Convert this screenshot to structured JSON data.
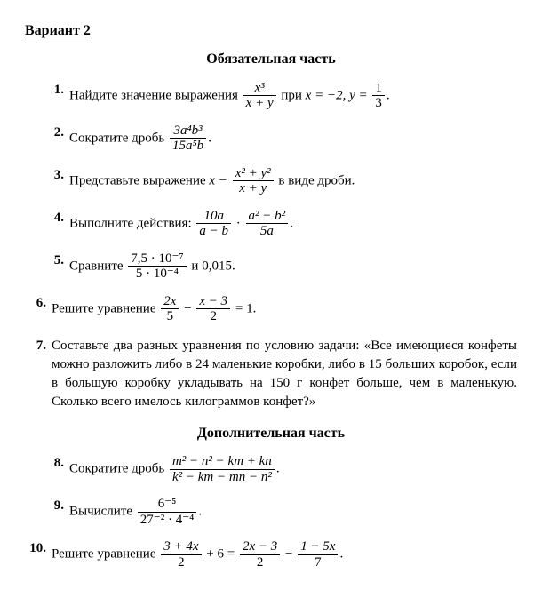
{
  "variant_label": "Вариант 2",
  "section1_title": "Обязательная часть",
  "section2_title": "Дополнительная часть",
  "tasks": {
    "t1": {
      "num": "1.",
      "pre": "Найдите значение выражения",
      "frac_top": "x³",
      "frac_bot": "x + y",
      "mid": "при",
      "x_eq": "x = −2,",
      "y_eq": "y =",
      "y_top": "1",
      "y_bot": "3",
      "end": "."
    },
    "t2": {
      "num": "2.",
      "pre": "Сократите дробь",
      "frac_top": "3a⁴b³",
      "frac_bot": "15a⁵b",
      "end": "."
    },
    "t3": {
      "num": "3.",
      "pre": "Представьте выражение",
      "lhs": "x −",
      "frac_top": "x² + y²",
      "frac_bot": "x + y",
      "post": "в виде дроби."
    },
    "t4": {
      "num": "4.",
      "pre": "Выполните действия:",
      "f1_top": "10a",
      "f1_bot": "a − b",
      "dot": " · ",
      "f2_top": "a² − b²",
      "f2_bot": "5a",
      "end": "."
    },
    "t5": {
      "num": "5.",
      "pre": "Сравните",
      "frac_top": "7,5 · 10⁻⁷",
      "frac_bot": "5 · 10⁻⁴",
      "post": "и 0,015."
    },
    "t6": {
      "num": "6.",
      "pre": "Решите уравнение",
      "f1_top": "2x",
      "f1_bot": "5",
      "minus": " − ",
      "f2_top": "x − 3",
      "f2_bot": "2",
      "eq": " = 1."
    },
    "t7": {
      "num": "7.",
      "text": "Составьте два разных уравнения по условию задачи: «Все имеющиеся конфеты можно разложить либо в 24 маленькие коробки, либо в 15 больших коробок, если в большую коробку укладывать на 150 г конфет больше, чем в маленькую. Сколько всего имелось килограммов конфет?»"
    },
    "t8": {
      "num": "8.",
      "pre": "Сократите дробь",
      "frac_top": "m² − n² − km + kn",
      "frac_bot": "k² − km − mn − n²",
      "end": "."
    },
    "t9": {
      "num": "9.",
      "pre": "Вычислите",
      "frac_top": "6⁻⁵",
      "frac_bot": "27⁻² · 4⁻⁴",
      "end": "."
    },
    "t10": {
      "num": "10.",
      "pre": "Решите уравнение",
      "f1_top": "3 + 4x",
      "f1_bot": "2",
      "plus": " + 6 = ",
      "f2_top": "2x − 3",
      "f2_bot": "2",
      "minus": " − ",
      "f3_top": "1 − 5x",
      "f3_bot": "7",
      "end": "."
    }
  }
}
